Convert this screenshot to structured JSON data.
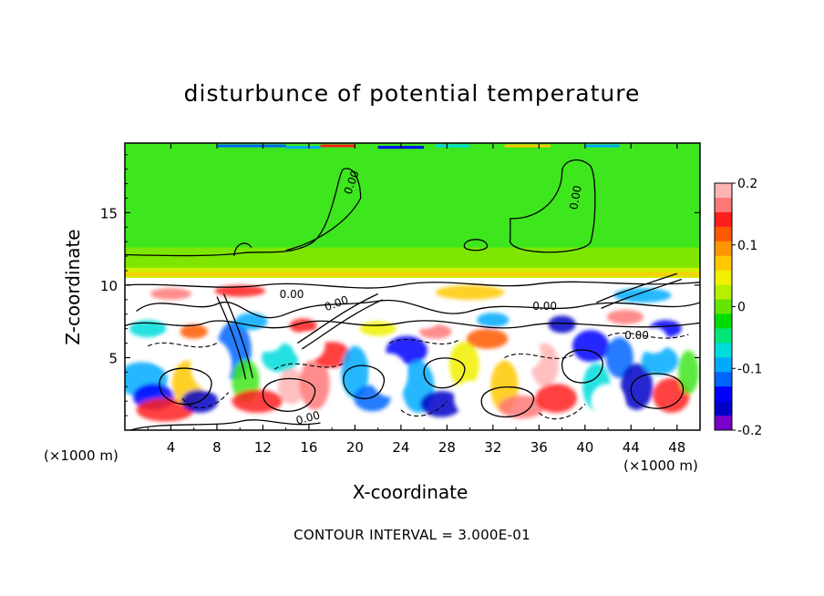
{
  "chart_data": {
    "type": "heatmap",
    "title": "disturbunce of potential temperature",
    "xlabel": "X-coordinate",
    "ylabel": "Z-coordinate",
    "x_unit": "(×1000 m)",
    "y_unit": "(×1000 m)",
    "xlim": [
      0,
      50
    ],
    "ylim": [
      0,
      19.8
    ],
    "xticks": [
      4,
      8,
      12,
      16,
      20,
      24,
      28,
      32,
      36,
      40,
      44,
      48
    ],
    "yticks": [
      5,
      10,
      15
    ],
    "colorbar": {
      "range": [
        -0.2,
        0.2
      ],
      "tick_labels": [
        "0.2",
        "0.1",
        "0",
        "-0.1",
        "-0.2"
      ],
      "tick_values": [
        0.2,
        0.1,
        0,
        -0.1,
        -0.2
      ],
      "colors": [
        "#ffb4b4",
        "#ff7878",
        "#ff1e1e",
        "#ff5a00",
        "#ff9600",
        "#ffc800",
        "#f0f000",
        "#b4f000",
        "#64e600",
        "#00dc00",
        "#00e678",
        "#00dcdc",
        "#00aaff",
        "#0064ff",
        "#0000ff",
        "#0000c8",
        "#7800c8"
      ]
    },
    "contour_labels": [
      "0.00",
      "0.00",
      "0.00",
      "0.00",
      "0.00",
      "0.00",
      "0.00"
    ],
    "footer": "CONTOUR INTERVAL = 3.000E-01"
  }
}
